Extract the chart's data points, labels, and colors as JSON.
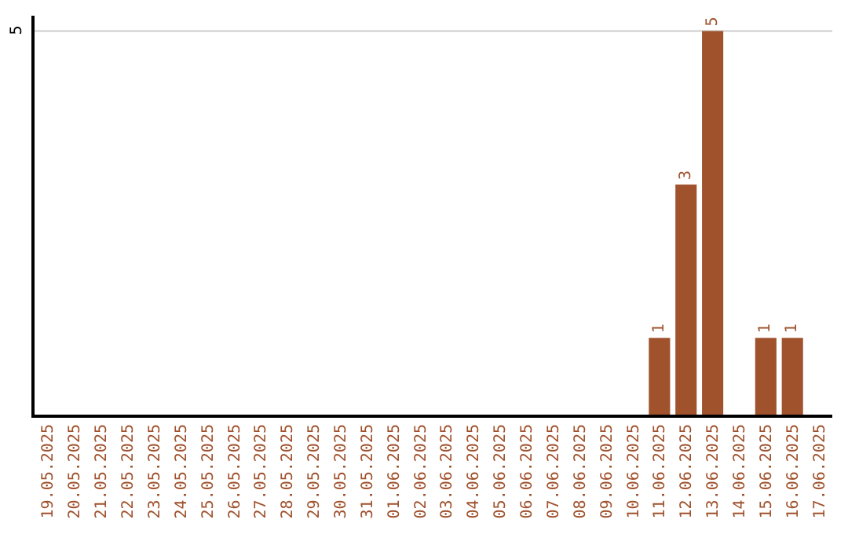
{
  "chart_data": {
    "type": "bar",
    "categories": [
      "19.05.2025",
      "20.05.2025",
      "21.05.2025",
      "22.05.2025",
      "23.05.2025",
      "24.05.2025",
      "25.05.2025",
      "26.05.2025",
      "27.05.2025",
      "28.05.2025",
      "29.05.2025",
      "30.05.2025",
      "31.05.2025",
      "01.06.2025",
      "02.06.2025",
      "03.06.2025",
      "04.06.2025",
      "05.06.2025",
      "06.06.2025",
      "07.06.2025",
      "08.06.2025",
      "09.06.2025",
      "10.06.2025",
      "11.06.2025",
      "12.06.2025",
      "13.06.2025",
      "14.06.2025",
      "15.06.2025",
      "16.06.2025",
      "17.06.2025"
    ],
    "values": [
      null,
      null,
      null,
      null,
      null,
      null,
      null,
      null,
      null,
      null,
      null,
      null,
      null,
      null,
      null,
      null,
      null,
      null,
      null,
      null,
      null,
      null,
      null,
      1,
      3,
      5,
      null,
      1,
      1,
      null
    ],
    "data_labels": true,
    "color": "#a0522d",
    "ref_lines": [
      {
        "axis": "y",
        "value": 5,
        "label": "5",
        "color": "#cccccc"
      }
    ],
    "legend": false
  }
}
